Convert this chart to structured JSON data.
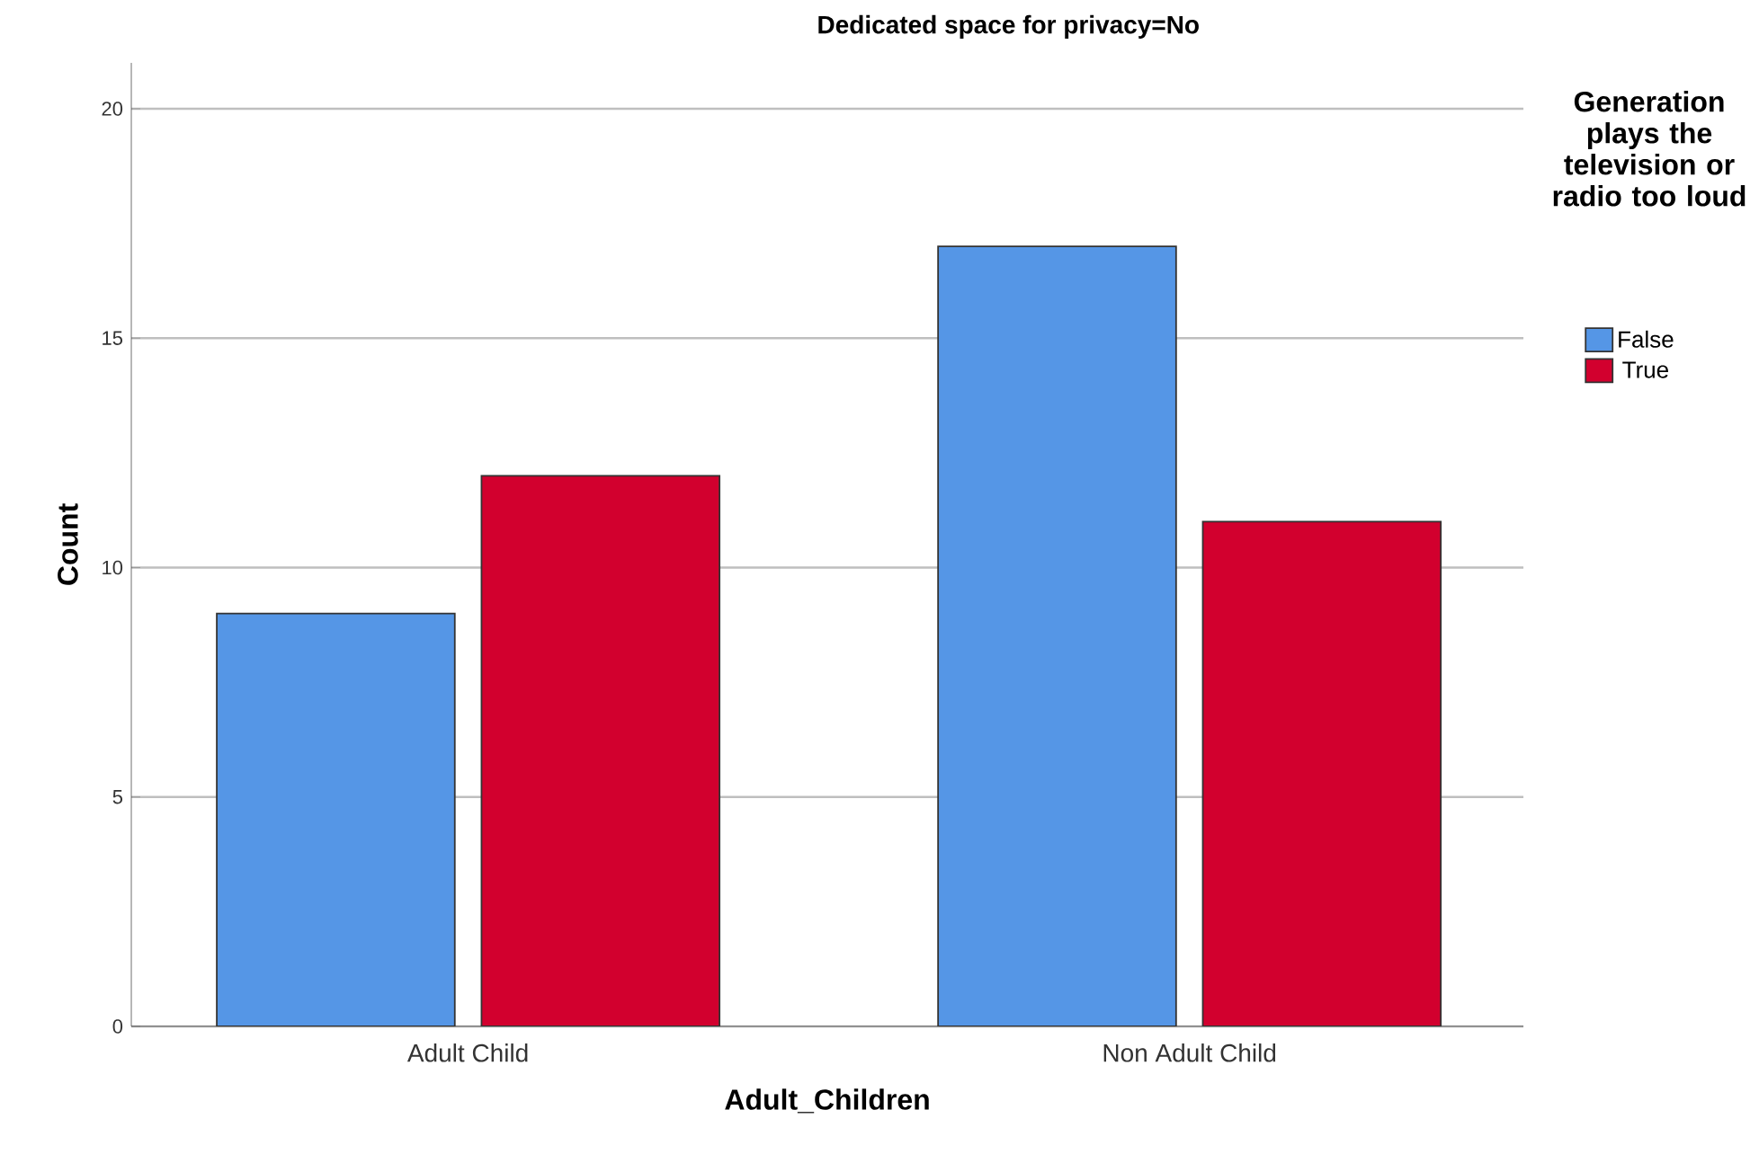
{
  "chart_data": {
    "type": "bar",
    "title": "Dedicated space for privacy=No",
    "xlabel": "Adult_Children",
    "ylabel": "Count",
    "legend_title": "Generation plays the television or radio too loud",
    "categories": [
      "Adult Child",
      "Non Adult Child"
    ],
    "series": [
      {
        "name": "False",
        "color": "#5596e6",
        "values": [
          9,
          17
        ]
      },
      {
        "name": "True",
        "color": "#d2002e",
        "values": [
          12,
          11
        ]
      }
    ],
    "ylim": [
      0,
      21
    ],
    "yticks": [
      0,
      5,
      10,
      15,
      20
    ],
    "grid": "y",
    "legend": "top right"
  }
}
